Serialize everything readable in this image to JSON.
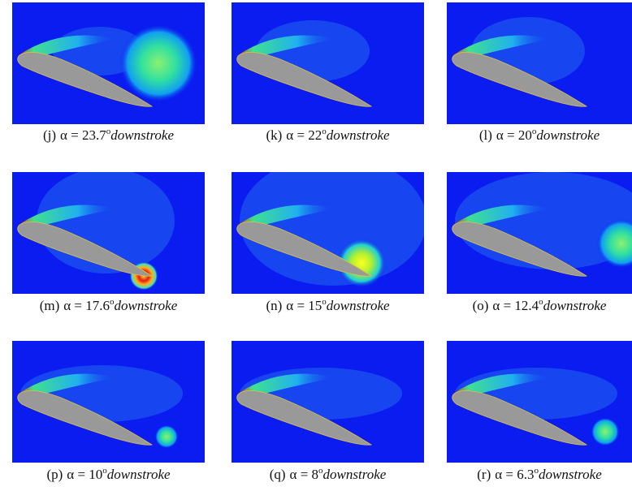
{
  "panels": [
    {
      "tag": "(j)",
      "alpha": "α = 23.7",
      "deg": "o",
      "phase": "downstroke"
    },
    {
      "tag": "(k)",
      "alpha": "α = 22",
      "deg": "o",
      "phase": "downstroke"
    },
    {
      "tag": "(l)",
      "alpha": "α = 20",
      "deg": "o",
      "phase": "downstroke"
    },
    {
      "tag": "(m)",
      "alpha": "α = 17.6",
      "deg": "o",
      "phase": "downstroke"
    },
    {
      "tag": "(n)",
      "alpha": "α = 15",
      "deg": "o",
      "phase": "downstroke"
    },
    {
      "tag": "(o)",
      "alpha": "α = 12.4",
      "deg": "o",
      "phase": "downstroke"
    },
    {
      "tag": "(p)",
      "alpha": "α = 10",
      "deg": "o",
      "phase": "downstroke"
    },
    {
      "tag": "(q)",
      "alpha": "α = 8",
      "deg": "o",
      "phase": "downstroke"
    },
    {
      "tag": "(r)",
      "alpha": "α = 6.3",
      "deg": "o",
      "phase": "downstroke"
    }
  ]
}
